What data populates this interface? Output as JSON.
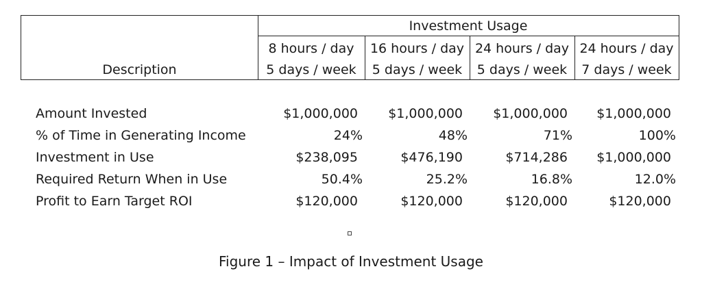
{
  "table": {
    "group_header": "Investment Usage",
    "description_header": "Description",
    "columns": [
      {
        "line1": "8 hours / day",
        "line2": "5 days / week"
      },
      {
        "line1": "16 hours / day",
        "line2": "5 days / week"
      },
      {
        "line1": "24 hours / day",
        "line2": "5 days / week"
      },
      {
        "line1": "24 hours / day",
        "line2": "7 days / week"
      }
    ],
    "rows": [
      {
        "label": "Amount Invested",
        "values": [
          "$1,000,000",
          "$1,000,000",
          "$1,000,000",
          "$1,000,000"
        ]
      },
      {
        "label": "% of Time in Generating Income",
        "values": [
          "24%",
          "48%",
          "71%",
          "100%"
        ]
      },
      {
        "label": "Investment in Use",
        "values": [
          "$238,095",
          "$476,190",
          "$714,286",
          "$1,000,000"
        ]
      },
      {
        "label": "Required Return When in Use",
        "values": [
          "50.4%",
          "25.2%",
          "16.8%",
          "12.0%"
        ]
      },
      {
        "label": "Profit to Earn Target ROI",
        "values": [
          "$120,000",
          "$120,000",
          "$120,000",
          "$120,000"
        ]
      }
    ]
  },
  "caption": "Figure 1 – Impact of Investment Usage"
}
